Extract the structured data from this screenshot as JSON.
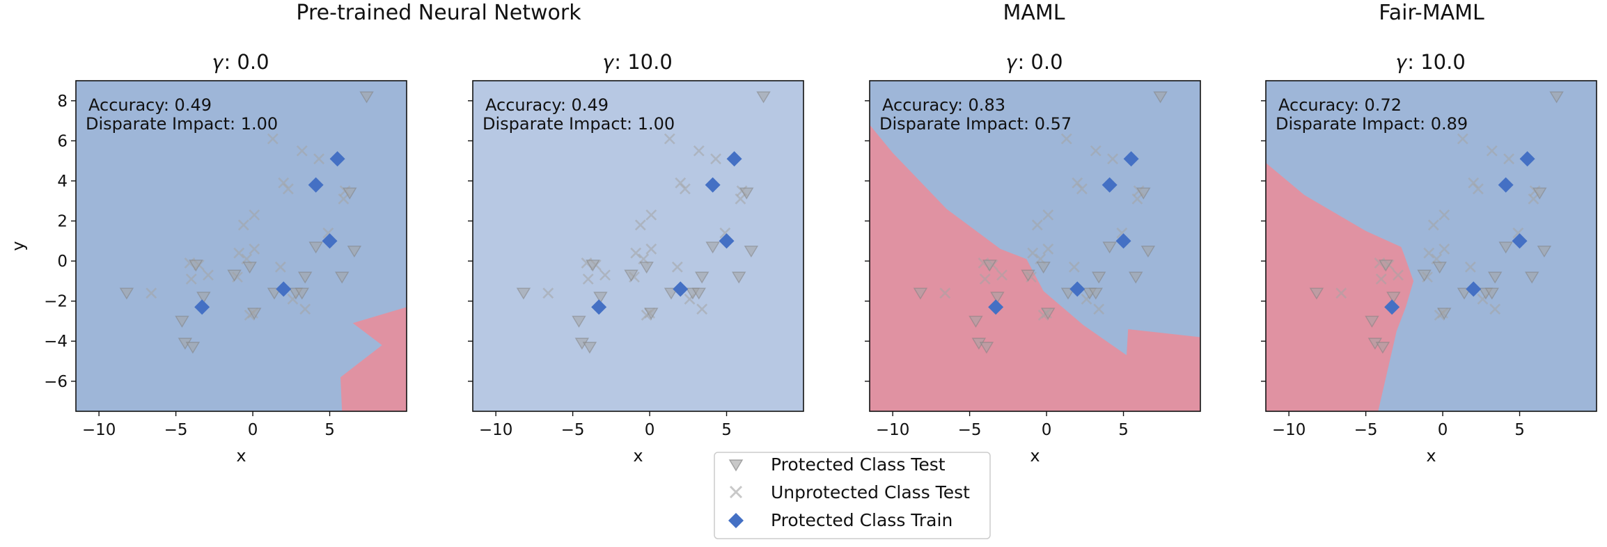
{
  "figure": {
    "group_titles": [
      "Pre-trained Neural Network",
      "MAML",
      "Fair-MAML"
    ],
    "colors": {
      "protected_region": "#9eb6d8",
      "protected_region_light": "#b7c8e3",
      "unprotected_region": "#e092a2",
      "marker_blue": "#4470c4",
      "marker_grey": "#a4a4a4",
      "marker_red": "#c04466"
    }
  },
  "legend": {
    "location": "bottom-center",
    "items": [
      {
        "label": "Protected Class Test",
        "icon": "triangle-down-icon"
      },
      {
        "label": "Unprotected Class Test",
        "icon": "x-mark-icon"
      },
      {
        "label": "Protected Class Train",
        "icon": "diamond-icon"
      }
    ]
  },
  "chart_data": [
    {
      "type": "scatter",
      "title": "𝛾: 0.0",
      "group": "Pre-trained Neural Network",
      "accuracy_label": "Accuracy: 0.49",
      "disparate_impact_label": "Disparate Impact: 1.00",
      "xlabel": "x",
      "ylabel": "y",
      "xlim": [
        -11.5,
        10
      ],
      "ylim": [
        -7.5,
        9
      ],
      "xticks": [
        -10,
        -5,
        0,
        5
      ],
      "yticks": [
        8,
        6,
        4,
        2,
        0,
        -2,
        -4,
        -6
      ],
      "grid": false,
      "background_class": "protected",
      "region": "unprotected",
      "region_boundary": [
        [
          5.8,
          -7.5
        ],
        [
          5.7,
          -5.8
        ],
        [
          8.4,
          -4.2
        ],
        [
          6.5,
          -3.1
        ],
        [
          10,
          -2.3
        ],
        [
          10,
          -7.5
        ]
      ]
    },
    {
      "type": "scatter",
      "title": "𝛾: 10.0",
      "group": "Pre-trained Neural Network",
      "accuracy_label": "Accuracy: 0.49",
      "disparate_impact_label": "Disparate Impact: 1.00",
      "xlabel": "x",
      "ylabel": "",
      "xlim": [
        -11.5,
        10
      ],
      "ylim": [
        -7.5,
        9
      ],
      "xticks": [
        -10,
        -5,
        0,
        5
      ],
      "yticks": [
        8,
        6,
        4,
        2,
        0,
        -2,
        -4,
        -6
      ],
      "grid": false,
      "background_class": "protected_light",
      "region": "none",
      "region_boundary": []
    },
    {
      "type": "scatter",
      "title": "𝛾: 0.0",
      "group": "MAML",
      "accuracy_label": "Accuracy: 0.83",
      "disparate_impact_label": "Disparate Impact: 0.57",
      "xlabel": "x",
      "ylabel": "",
      "xlim": [
        -11.5,
        10
      ],
      "ylim": [
        -7.5,
        9
      ],
      "xticks": [
        -10,
        -5,
        0,
        5
      ],
      "yticks": [
        8,
        6,
        4,
        2,
        0,
        -2,
        -4,
        -6
      ],
      "grid": false,
      "background_class": "protected",
      "region": "unprotected",
      "region_boundary": [
        [
          -11.5,
          6.8
        ],
        [
          -10,
          5.4
        ],
        [
          -6.5,
          2.6
        ],
        [
          -3,
          0.6
        ],
        [
          -1.3,
          0.1
        ],
        [
          -0.2,
          -1.5
        ],
        [
          2.4,
          -3.2
        ],
        [
          5.2,
          -4.7
        ],
        [
          5.3,
          -3.4
        ],
        [
          10,
          -3.8
        ],
        [
          10,
          -7.5
        ],
        [
          -11.5,
          -7.5
        ]
      ]
    },
    {
      "type": "scatter",
      "title": "𝛾: 10.0",
      "group": "Fair-MAML",
      "accuracy_label": "Accuracy: 0.72",
      "disparate_impact_label": "Disparate Impact: 0.89",
      "xlabel": "x",
      "ylabel": "",
      "xlim": [
        -11.5,
        10
      ],
      "ylim": [
        -7.5,
        9
      ],
      "xticks": [
        -10,
        -5,
        0,
        5
      ],
      "yticks": [
        8,
        6,
        4,
        2,
        0,
        -2,
        -4,
        -6
      ],
      "grid": false,
      "background_class": "protected",
      "region": "unprotected",
      "region_boundary": [
        [
          -11.5,
          4.9
        ],
        [
          -9,
          3.3
        ],
        [
          -5,
          1.5
        ],
        [
          -2.7,
          0.7
        ],
        [
          -2.5,
          0.3
        ],
        [
          -1.9,
          -1
        ],
        [
          -2.4,
          -2.3
        ],
        [
          -3,
          -3.5
        ],
        [
          -4.2,
          -7.5
        ],
        [
          -11.5,
          -7.5
        ]
      ]
    }
  ],
  "shared_points": {
    "protected_test": [
      [
        -8.2,
        -1.6
      ],
      [
        -4.6,
        -3
      ],
      [
        -4.4,
        -4.1
      ],
      [
        -3.9,
        -4.3
      ],
      [
        -3.2,
        -1.8
      ],
      [
        -3.7,
        -0.2
      ],
      [
        -1.2,
        -0.7
      ],
      [
        -0.2,
        -0.3
      ],
      [
        0.1,
        -2.6
      ],
      [
        1.4,
        -1.6
      ],
      [
        2.8,
        -1.6
      ],
      [
        3.2,
        -1.6
      ],
      [
        3.4,
        -0.8
      ],
      [
        4.1,
        0.7
      ],
      [
        5.8,
        -0.8
      ],
      [
        6.6,
        0.5
      ],
      [
        6.3,
        3.4
      ],
      [
        7.4,
        8.2
      ]
    ],
    "unprotected_test": [
      [
        -6.6,
        -1.6
      ],
      [
        -4.1,
        -0.1
      ],
      [
        -4.0,
        -0.9
      ],
      [
        -3.5,
        -0.2
      ],
      [
        -2.9,
        -0.7
      ],
      [
        -1.0,
        -0.8
      ],
      [
        -0.9,
        0.4
      ],
      [
        -0.6,
        1.8
      ],
      [
        -0.4,
        0.1
      ],
      [
        0.1,
        0.6
      ],
      [
        0.1,
        2.3
      ],
      [
        0.0,
        -2.6
      ],
      [
        -0.2,
        -2.7
      ],
      [
        1.3,
        6.1
      ],
      [
        1.8,
        -0.3
      ],
      [
        2.0,
        3.9
      ],
      [
        2.3,
        3.6
      ],
      [
        2.6,
        -1.9
      ],
      [
        3.4,
        -2.4
      ],
      [
        3.2,
        5.5
      ],
      [
        4.3,
        5.1
      ],
      [
        4.9,
        1.4
      ],
      [
        5.9,
        3.1
      ],
      [
        6.0,
        3.5
      ]
    ],
    "protected_train": [
      [
        -3.3,
        -2.3
      ],
      [
        2.0,
        -1.4
      ],
      [
        4.1,
        3.8
      ],
      [
        5.0,
        1.0
      ],
      [
        5.5,
        5.1
      ]
    ]
  }
}
